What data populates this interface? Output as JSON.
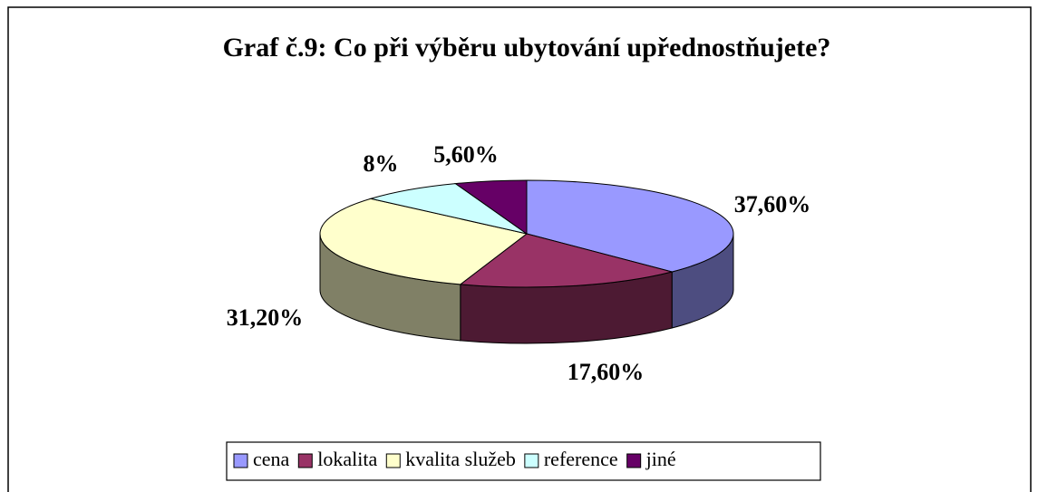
{
  "chart_data": {
    "type": "pie3d",
    "title": "Graf č.9: Co při výběru ubytování upřednostňujete?",
    "categories": [
      "cena",
      "lokalita",
      "kvalita služeb",
      "reference",
      "jiné"
    ],
    "values": [
      37.6,
      17.6,
      31.2,
      8,
      5.6
    ],
    "value_labels": [
      "37,60%",
      "17,60%",
      "31,20%",
      "8%",
      "5,60%"
    ],
    "colors": [
      "#9999ff",
      "#993366",
      "#ffffcc",
      "#ccffff",
      "#660066"
    ],
    "legend": "bottom"
  }
}
